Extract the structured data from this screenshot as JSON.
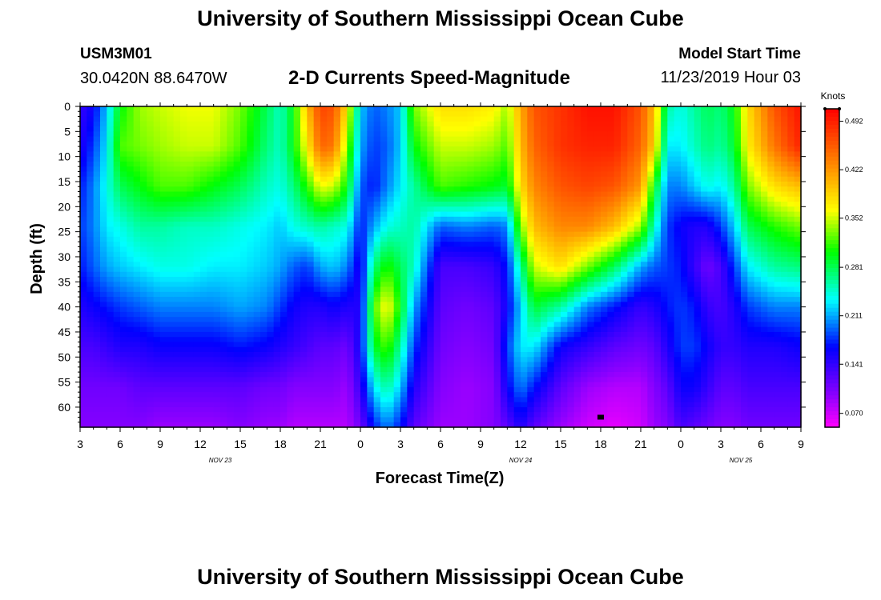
{
  "header": {
    "title": "University of Southern Mississippi Ocean Cube",
    "footer_title": "University of Southern Mississippi Ocean Cube",
    "station": "USM3M01",
    "coordinates": "30.0420N 88.6470W",
    "model_start_label": "Model Start Time",
    "model_start_value": "11/23/2019 Hour 03"
  },
  "chart_data": {
    "type": "heatmap",
    "title": "2-D Currents Speed-Magnitude",
    "xlabel": "Forecast Time(Z)",
    "ylabel": "Depth (ft)",
    "x_unit": "hours since model start (11/23/2019 03Z)",
    "xlim": [
      0,
      54
    ],
    "ylim": [
      0,
      64
    ],
    "y_inverted": true,
    "x_ticks": [
      {
        "h": 0,
        "label": "3"
      },
      {
        "h": 3,
        "label": "6"
      },
      {
        "h": 6,
        "label": "9"
      },
      {
        "h": 9,
        "label": "12"
      },
      {
        "h": 12,
        "label": "15"
      },
      {
        "h": 15,
        "label": "18"
      },
      {
        "h": 18,
        "label": "21"
      },
      {
        "h": 21,
        "label": "0"
      },
      {
        "h": 24,
        "label": "3"
      },
      {
        "h": 27,
        "label": "6"
      },
      {
        "h": 30,
        "label": "9"
      },
      {
        "h": 33,
        "label": "12"
      },
      {
        "h": 36,
        "label": "15"
      },
      {
        "h": 39,
        "label": "18"
      },
      {
        "h": 42,
        "label": "21"
      },
      {
        "h": 45,
        "label": "0"
      },
      {
        "h": 48,
        "label": "3"
      },
      {
        "h": 51,
        "label": "6"
      },
      {
        "h": 54,
        "label": "9"
      }
    ],
    "date_labels": [
      {
        "h": 10.5,
        "label": "NOV 23"
      },
      {
        "h": 33,
        "label": "NOV 24"
      },
      {
        "h": 49.5,
        "label": "NOV 25"
      }
    ],
    "y_ticks": [
      0,
      5,
      10,
      15,
      20,
      25,
      30,
      35,
      40,
      45,
      50,
      55,
      60
    ],
    "colorbar": {
      "unit": "Knots",
      "min": 0.05,
      "max": 0.51,
      "labels": [
        "0.492",
        "0.422",
        "0.352",
        "0.281",
        "0.211",
        "0.141",
        "0.070"
      ]
    },
    "marker": {
      "h": 39,
      "depth": 62
    },
    "depths": [
      0,
      8,
      16,
      24,
      32,
      40,
      48,
      56,
      64
    ],
    "times": [
      0,
      1,
      2,
      3,
      4.5,
      6,
      8,
      10,
      12,
      14,
      15,
      16,
      17,
      18,
      19,
      20,
      21,
      22,
      23,
      24,
      25,
      27,
      29,
      31,
      32,
      33,
      34,
      36,
      38,
      40,
      42,
      43,
      44,
      45,
      46,
      47,
      48,
      49,
      50,
      52,
      54
    ],
    "speed_columns": [
      [
        0.14,
        0.15,
        0.17,
        0.18,
        0.17,
        0.15,
        0.13,
        0.11,
        0.1
      ],
      [
        0.16,
        0.18,
        0.2,
        0.2,
        0.19,
        0.16,
        0.13,
        0.11,
        0.1
      ],
      [
        0.22,
        0.23,
        0.24,
        0.23,
        0.21,
        0.17,
        0.14,
        0.11,
        0.1
      ],
      [
        0.3,
        0.32,
        0.28,
        0.24,
        0.22,
        0.18,
        0.15,
        0.11,
        0.1
      ],
      [
        0.34,
        0.33,
        0.3,
        0.26,
        0.23,
        0.19,
        0.15,
        0.12,
        0.1
      ],
      [
        0.35,
        0.34,
        0.32,
        0.26,
        0.24,
        0.2,
        0.16,
        0.12,
        0.09
      ],
      [
        0.36,
        0.35,
        0.32,
        0.25,
        0.24,
        0.2,
        0.16,
        0.12,
        0.09
      ],
      [
        0.36,
        0.35,
        0.3,
        0.25,
        0.23,
        0.2,
        0.16,
        0.12,
        0.09
      ],
      [
        0.33,
        0.32,
        0.28,
        0.24,
        0.23,
        0.21,
        0.17,
        0.12,
        0.1
      ],
      [
        0.28,
        0.27,
        0.25,
        0.23,
        0.22,
        0.2,
        0.16,
        0.11,
        0.09
      ],
      [
        0.25,
        0.25,
        0.24,
        0.22,
        0.21,
        0.18,
        0.15,
        0.11,
        0.09
      ],
      [
        0.3,
        0.3,
        0.27,
        0.24,
        0.19,
        0.16,
        0.14,
        0.1,
        0.08
      ],
      [
        0.4,
        0.37,
        0.31,
        0.25,
        0.18,
        0.15,
        0.13,
        0.1,
        0.08
      ],
      [
        0.47,
        0.45,
        0.36,
        0.26,
        0.21,
        0.15,
        0.12,
        0.1,
        0.08
      ],
      [
        0.46,
        0.44,
        0.35,
        0.25,
        0.22,
        0.16,
        0.12,
        0.1,
        0.08
      ],
      [
        0.38,
        0.34,
        0.3,
        0.24,
        0.2,
        0.15,
        0.11,
        0.09,
        0.08
      ],
      [
        0.22,
        0.21,
        0.19,
        0.17,
        0.15,
        0.15,
        0.16,
        0.14,
        0.11
      ],
      [
        0.19,
        0.18,
        0.17,
        0.21,
        0.27,
        0.32,
        0.29,
        0.23,
        0.17
      ],
      [
        0.2,
        0.19,
        0.2,
        0.24,
        0.31,
        0.37,
        0.32,
        0.26,
        0.2
      ],
      [
        0.22,
        0.22,
        0.23,
        0.25,
        0.28,
        0.3,
        0.26,
        0.22,
        0.17
      ],
      [
        0.33,
        0.3,
        0.26,
        0.26,
        0.25,
        0.21,
        0.18,
        0.15,
        0.12
      ],
      [
        0.38,
        0.35,
        0.32,
        0.19,
        0.13,
        0.12,
        0.11,
        0.1,
        0.09
      ],
      [
        0.38,
        0.35,
        0.31,
        0.2,
        0.13,
        0.11,
        0.1,
        0.09,
        0.09
      ],
      [
        0.37,
        0.34,
        0.3,
        0.19,
        0.14,
        0.12,
        0.11,
        0.1,
        0.1
      ],
      [
        0.34,
        0.32,
        0.29,
        0.2,
        0.17,
        0.16,
        0.18,
        0.16,
        0.12
      ],
      [
        0.41,
        0.4,
        0.38,
        0.33,
        0.26,
        0.22,
        0.23,
        0.2,
        0.15
      ],
      [
        0.46,
        0.45,
        0.43,
        0.4,
        0.35,
        0.29,
        0.23,
        0.17,
        0.12
      ],
      [
        0.48,
        0.48,
        0.46,
        0.43,
        0.38,
        0.26,
        0.16,
        0.12,
        0.09
      ],
      [
        0.5,
        0.49,
        0.47,
        0.43,
        0.33,
        0.2,
        0.14,
        0.09,
        0.07
      ],
      [
        0.5,
        0.49,
        0.46,
        0.4,
        0.28,
        0.17,
        0.12,
        0.08,
        0.06
      ],
      [
        0.46,
        0.45,
        0.42,
        0.34,
        0.21,
        0.14,
        0.11,
        0.08,
        0.07
      ],
      [
        0.4,
        0.39,
        0.3,
        0.25,
        0.19,
        0.15,
        0.12,
        0.1,
        0.09
      ],
      [
        0.26,
        0.23,
        0.2,
        0.18,
        0.18,
        0.17,
        0.15,
        0.12,
        0.1
      ],
      [
        0.24,
        0.23,
        0.2,
        0.16,
        0.17,
        0.18,
        0.18,
        0.16,
        0.13
      ],
      [
        0.26,
        0.25,
        0.22,
        0.15,
        0.14,
        0.17,
        0.18,
        0.16,
        0.12
      ],
      [
        0.28,
        0.27,
        0.24,
        0.15,
        0.11,
        0.14,
        0.16,
        0.14,
        0.11
      ],
      [
        0.27,
        0.26,
        0.23,
        0.18,
        0.13,
        0.13,
        0.14,
        0.12,
        0.1
      ],
      [
        0.3,
        0.29,
        0.26,
        0.22,
        0.18,
        0.15,
        0.14,
        0.12,
        0.1
      ],
      [
        0.38,
        0.37,
        0.33,
        0.28,
        0.23,
        0.18,
        0.15,
        0.13,
        0.11
      ],
      [
        0.46,
        0.44,
        0.38,
        0.31,
        0.26,
        0.2,
        0.15,
        0.13,
        0.11
      ],
      [
        0.5,
        0.49,
        0.4,
        0.33,
        0.27,
        0.2,
        0.16,
        0.13,
        0.11
      ]
    ]
  }
}
